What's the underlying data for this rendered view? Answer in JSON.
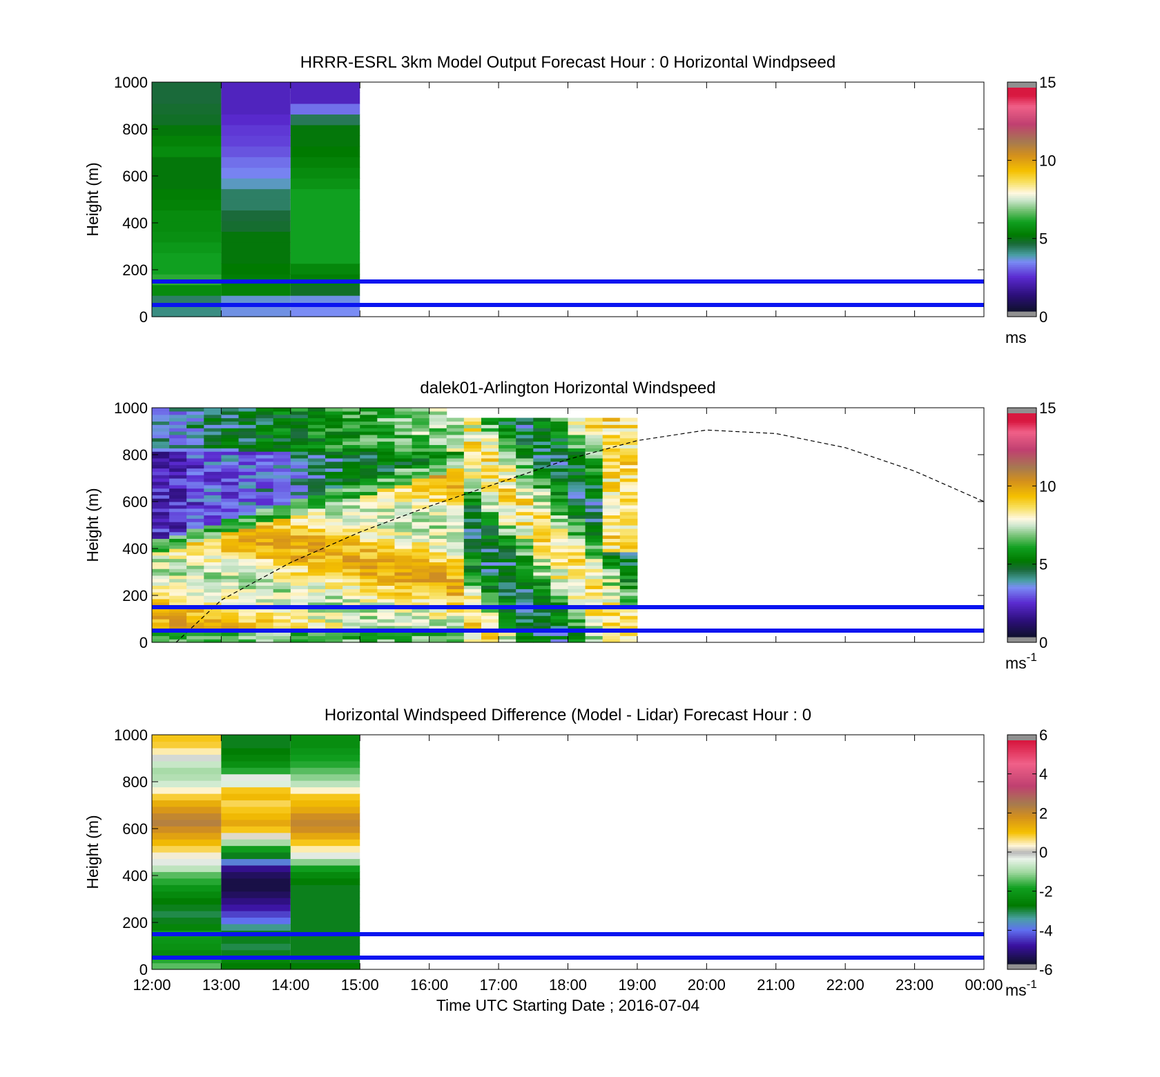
{
  "chart_data": [
    {
      "type": "heatmap",
      "title": "HRRR-ESRL 3km Model Output   Forecast Hour : 0 Horizontal Windpseed",
      "ylabel": "Height (m)",
      "xlabel": "",
      "ylim": [
        0,
        1000
      ],
      "yticks": [
        "0",
        "200",
        "400",
        "600",
        "800",
        "1000"
      ],
      "xticks": [
        "12:00",
        "13:00",
        "14:00",
        "15:00",
        "16:00",
        "17:00",
        "18:00",
        "19:00",
        "20:00",
        "21:00",
        "22:00",
        "23:00",
        "00:00"
      ],
      "colorbar": {
        "min": 0,
        "max": 15,
        "ticks": [
          "0",
          "5",
          "10",
          "15"
        ],
        "unit": "ms"
      },
      "reference_heights_m": [
        150,
        50
      ],
      "hours": [
        12,
        13,
        14
      ],
      "values": [
        [
          4.0,
          4.2,
          5.5,
          6.2,
          6.0,
          6.0,
          5.8,
          5.6,
          5.5,
          5.5,
          5.3,
          5.2,
          5.0,
          5.0,
          5.0,
          5.5,
          5.3,
          5.0,
          4.7,
          4.6,
          4.5,
          4.5
        ],
        [
          3.4,
          3.5,
          5.3,
          5.2,
          5.1,
          5.0,
          5.0,
          5.0,
          4.6,
          4.5,
          4.2,
          4.2,
          3.6,
          3.2,
          3.0,
          2.7,
          2.5,
          2.4,
          2.2,
          2.0,
          2.0,
          2.0
        ],
        [
          3.3,
          3.4,
          4.7,
          5.2,
          5.4,
          6.0,
          6.0,
          6.0,
          6.0,
          6.0,
          6.0,
          6.0,
          5.7,
          5.5,
          5.3,
          5.1,
          5.0,
          5.0,
          4.3,
          3.0,
          2.0,
          2.0
        ]
      ]
    },
    {
      "type": "heatmap",
      "title": "dalek01-Arlington  Horizontal Windspeed",
      "ylabel": "Height (m)",
      "xlabel": "",
      "ylim": [
        0,
        1000
      ],
      "yticks": [
        "0",
        "200",
        "400",
        "600",
        "800",
        "1000"
      ],
      "xticks": [
        "12:00",
        "13:00",
        "14:00",
        "15:00",
        "16:00",
        "17:00",
        "18:00",
        "19:00",
        "20:00",
        "21:00",
        "22:00",
        "23:00",
        "00:00"
      ],
      "colorbar": {
        "min": 0,
        "max": 15,
        "ticks": [
          "0",
          "5",
          "10",
          "15"
        ],
        "unit": "ms",
        "unit_exp": "-1"
      },
      "reference_heights_m": [
        150,
        50
      ],
      "data_end_time": 18.85,
      "blh_curve": {
        "x": [
          12.35,
          13.0,
          14.0,
          15.0,
          16.0,
          17.0,
          18.0,
          19.0,
          20.0,
          21.0,
          22.0,
          23.0,
          24.0
        ],
        "y": [
          0,
          180,
          340,
          470,
          580,
          680,
          780,
          860,
          905,
          890,
          830,
          730,
          600
        ]
      }
    },
    {
      "type": "heatmap",
      "title": "Horizontal Windspeed Difference (Model - Lidar) Forecast Hour : 0",
      "ylabel": "Height (m)",
      "xlabel": "Time UTC  Starting Date ; 2016-07-04",
      "ylim": [
        0,
        1000
      ],
      "yticks": [
        "0",
        "200",
        "400",
        "600",
        "800",
        "1000"
      ],
      "xticks": [
        "12:00",
        "13:00",
        "14:00",
        "15:00",
        "16:00",
        "17:00",
        "18:00",
        "19:00",
        "20:00",
        "21:00",
        "22:00",
        "23:00",
        "00:00"
      ],
      "colorbar": {
        "min": -6,
        "max": 6,
        "ticks": [
          "-6",
          "-4",
          "-2",
          "0",
          "2",
          "4",
          "6"
        ],
        "unit": "ms",
        "unit_exp": "-1"
      },
      "reference_heights_m": [
        150,
        50
      ],
      "hours": [
        12,
        13,
        14
      ],
      "values": [
        [
          -1.5,
          -1.8,
          -2.5,
          -2.3,
          -2.2,
          -2.0,
          -2.6,
          -3.0,
          -3.2,
          -3.0,
          -2.8,
          -2.5,
          -2.2,
          -1.8,
          -1.5,
          -0.8,
          -0.3,
          0.3,
          0.8,
          1.2,
          1.6,
          2.0,
          2.4,
          2.2,
          1.8,
          1.4,
          0.9,
          0.4,
          -0.6,
          -0.9,
          -1.0,
          -0.7,
          -0.2,
          0.5,
          0.9,
          1.0
        ],
        [
          -2.8,
          -2.6,
          -3.0,
          -3.2,
          -3.0,
          -3.0,
          -3.5,
          -4.2,
          -4.6,
          -5.0,
          -5.3,
          -5.6,
          -5.8,
          -5.8,
          -5.6,
          -5.2,
          -4.0,
          -3.0,
          -2.0,
          -1.0,
          0.2,
          1.0,
          1.5,
          1.2,
          1.0,
          0.8,
          1.2,
          1.0,
          -0.5,
          -0.3,
          -1.8,
          -2.3,
          -2.6,
          -2.8,
          -3.0,
          -3.0
        ],
        [
          -2.8,
          -3.0,
          -3.0,
          -3.0,
          -3.0,
          -3.0,
          -3.0,
          -3.0,
          -3.0,
          -3.0,
          -3.0,
          -3.0,
          -3.0,
          -2.8,
          -2.5,
          -2.0,
          -1.2,
          -0.3,
          0.5,
          1.0,
          1.5,
          2.0,
          2.2,
          2.0,
          1.5,
          1.2,
          1.0,
          0.4,
          -0.8,
          -1.2,
          -1.5,
          -1.8,
          -2.0,
          -2.2,
          -2.4,
          -2.4
        ]
      ]
    }
  ]
}
